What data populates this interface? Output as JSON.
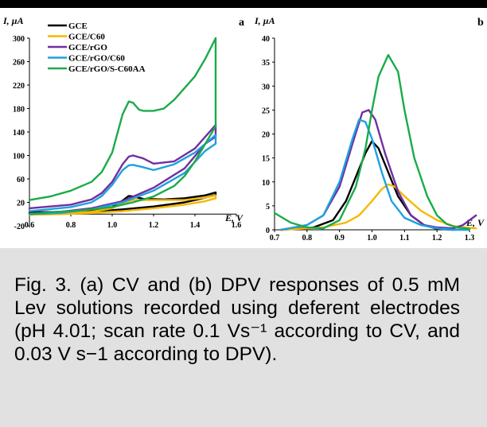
{
  "caption": "Fig. 3. (a) CV and (b) DPV responses of 0.5 mM Lev solutions recorded using deferent electrodes (pH 4.01; scan rate 0.1 Vs⁻¹ according to CV, and 0.03 V s−1 according to DPV).",
  "chart_data": [
    {
      "type": "line",
      "panel_label": "a",
      "ylabel": "I, µA",
      "xlabel": "E, V",
      "xlim": [
        0.6,
        1.6
      ],
      "ylim": [
        -20,
        300
      ],
      "xticks": [
        "0.6",
        "0.8",
        "1.0",
        "1.2",
        "1.4",
        "1.6"
      ],
      "yticks": [
        "-20",
        "20",
        "60",
        "100",
        "140",
        "180",
        "220",
        "260",
        "300"
      ],
      "legend": "top-left",
      "series": [
        {
          "name": "GCE",
          "color": "#000000",
          "x": [
            0.6,
            0.8,
            0.9,
            1.0,
            1.05,
            1.08,
            1.1,
            1.15,
            1.25,
            1.35,
            1.45,
            1.5,
            1.5,
            1.45,
            1.35,
            1.2,
            1.05,
            0.9,
            0.75,
            0.6
          ],
          "y": [
            3,
            4,
            6,
            12,
            23,
            31,
            30,
            26,
            25,
            27,
            32,
            37,
            33,
            28,
            20,
            13,
            8,
            4,
            2,
            1
          ]
        },
        {
          "name": "GCE/C60",
          "color": "#f5b800",
          "x": [
            0.6,
            0.8,
            0.9,
            1.0,
            1.05,
            1.1,
            1.15,
            1.25,
            1.35,
            1.45,
            1.5,
            1.5,
            1.45,
            1.35,
            1.2,
            1.05,
            0.9,
            0.75,
            0.6
          ],
          "y": [
            0,
            2,
            4,
            10,
            19,
            24,
            24,
            24,
            24,
            28,
            32,
            27,
            22,
            16,
            10,
            5,
            2,
            0,
            -1
          ]
        },
        {
          "name": "GCE/rGO",
          "color": "#7030a0",
          "x": [
            0.6,
            0.8,
            0.9,
            0.95,
            1.0,
            1.05,
            1.08,
            1.1,
            1.15,
            1.2,
            1.3,
            1.4,
            1.5,
            1.5,
            1.45,
            1.35,
            1.2,
            1.05,
            0.9,
            0.75,
            0.6
          ],
          "y": [
            10,
            16,
            25,
            36,
            55,
            85,
            98,
            100,
            95,
            86,
            90,
            112,
            152,
            132,
            120,
            78,
            45,
            22,
            10,
            4,
            1
          ]
        },
        {
          "name": "GCE/rGO/C60",
          "color": "#1fa0e0",
          "x": [
            0.6,
            0.8,
            0.9,
            0.95,
            1.0,
            1.05,
            1.08,
            1.1,
            1.15,
            1.2,
            1.3,
            1.4,
            1.5,
            1.5,
            1.45,
            1.35,
            1.2,
            1.05,
            0.9,
            0.75,
            0.6
          ],
          "y": [
            5,
            12,
            20,
            31,
            50,
            75,
            83,
            84,
            80,
            75,
            85,
            105,
            135,
            120,
            108,
            70,
            40,
            20,
            8,
            2,
            0
          ]
        },
        {
          "name": "GCE/rGO/S-C60AA",
          "color": "#1aab4a",
          "x": [
            0.6,
            0.7,
            0.8,
            0.9,
            0.95,
            1.0,
            1.05,
            1.08,
            1.1,
            1.13,
            1.15,
            1.2,
            1.25,
            1.3,
            1.4,
            1.45,
            1.5,
            1.5,
            1.45,
            1.4,
            1.35,
            1.3,
            1.2,
            1.1,
            1.0,
            0.9,
            0.8,
            0.7,
            0.6
          ],
          "y": [
            24,
            30,
            40,
            55,
            72,
            105,
            170,
            192,
            190,
            178,
            176,
            176,
            180,
            195,
            235,
            265,
            300,
            150,
            120,
            90,
            65,
            48,
            30,
            20,
            12,
            8,
            5,
            3,
            0
          ]
        }
      ]
    },
    {
      "type": "line",
      "panel_label": "b",
      "ylabel": "I, µA",
      "xlabel": "E, V",
      "xlim": [
        0.7,
        1.3
      ],
      "ylim": [
        0,
        40
      ],
      "xticks": [
        "0.7",
        "0.8",
        "0.9",
        "1.0",
        "1.1",
        "1.2",
        "1.3"
      ],
      "yticks": [
        "0",
        "5",
        "10",
        "15",
        "20",
        "25",
        "30",
        "35",
        "40"
      ],
      "series": [
        {
          "name": "GCE",
          "color": "#000000",
          "x": [
            0.72,
            0.82,
            0.88,
            0.92,
            0.95,
            0.98,
            1.0,
            1.02,
            1.05,
            1.08,
            1.12,
            1.16,
            1.2,
            1.25
          ],
          "y": [
            0,
            0.5,
            2,
            6,
            11,
            16,
            18.5,
            17,
            12,
            7,
            3,
            1,
            0.2,
            0
          ]
        },
        {
          "name": "GCE/C60",
          "color": "#f5b800",
          "x": [
            0.72,
            0.85,
            0.92,
            0.96,
            1.0,
            1.03,
            1.05,
            1.07,
            1.1,
            1.15,
            1.2,
            1.25,
            1.3,
            1.32
          ],
          "y": [
            0,
            0.5,
            1.5,
            3,
            6,
            8.5,
            9.5,
            9,
            7,
            4,
            2,
            0.8,
            0.4,
            0.3
          ]
        },
        {
          "name": "GCE/rGO",
          "color": "#7030a0",
          "x": [
            0.72,
            0.8,
            0.85,
            0.9,
            0.94,
            0.97,
            0.99,
            1.01,
            1.04,
            1.08,
            1.12,
            1.16,
            1.2,
            1.25,
            1.28,
            1.32
          ],
          "y": [
            0,
            1,
            3,
            9,
            18,
            24.5,
            25,
            23,
            16,
            8,
            3,
            1,
            0.5,
            0.3,
            1,
            3
          ]
        },
        {
          "name": "GCE/rGO/C60",
          "color": "#1fa0e0",
          "x": [
            0.72,
            0.8,
            0.85,
            0.9,
            0.94,
            0.96,
            0.98,
            1.0,
            1.03,
            1.06,
            1.1,
            1.15,
            1.2,
            1.25,
            1.3
          ],
          "y": [
            0,
            1,
            3,
            10,
            19,
            23,
            22.5,
            19,
            12,
            6,
            2.5,
            1,
            0.3,
            0,
            0
          ]
        },
        {
          "name": "GCE/rGO/S-C60AA",
          "color": "#1aab4a",
          "x": [
            0.7,
            0.75,
            0.8,
            0.85,
            0.9,
            0.95,
            0.98,
            1.0,
            1.02,
            1.05,
            1.08,
            1.1,
            1.13,
            1.17,
            1.2,
            1.23,
            1.26,
            1.3
          ],
          "y": [
            3.5,
            1.5,
            0.5,
            0.3,
            2,
            9,
            17,
            25,
            32,
            36.5,
            33,
            25,
            15,
            7,
            3,
            1.2,
            0.5,
            0.2
          ]
        }
      ]
    }
  ]
}
